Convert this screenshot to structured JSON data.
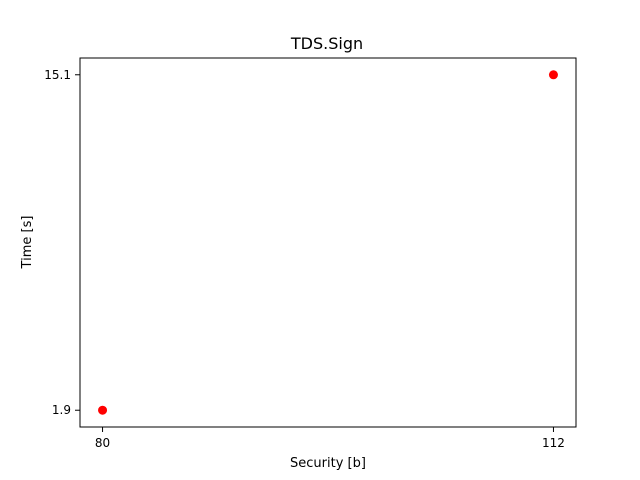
{
  "chart_data": {
    "type": "scatter",
    "title": "TDS.Sign",
    "xlabel": "Security [b]",
    "ylabel": "Time [s]",
    "x_ticks": [
      80,
      112
    ],
    "x_tick_labels": [
      "80",
      "112"
    ],
    "y_ticks": [
      1.9,
      15.1
    ],
    "y_tick_labels": [
      "1.9",
      "15.1"
    ],
    "xlim": [
      78.4,
      113.6
    ],
    "ylim": [
      1.24,
      15.76
    ],
    "grid": false,
    "series": [
      {
        "color": "#ff0000",
        "marker": "circle",
        "points": [
          {
            "x": 80,
            "y": 1.9
          },
          {
            "x": 112,
            "y": 15.1
          }
        ]
      }
    ]
  }
}
